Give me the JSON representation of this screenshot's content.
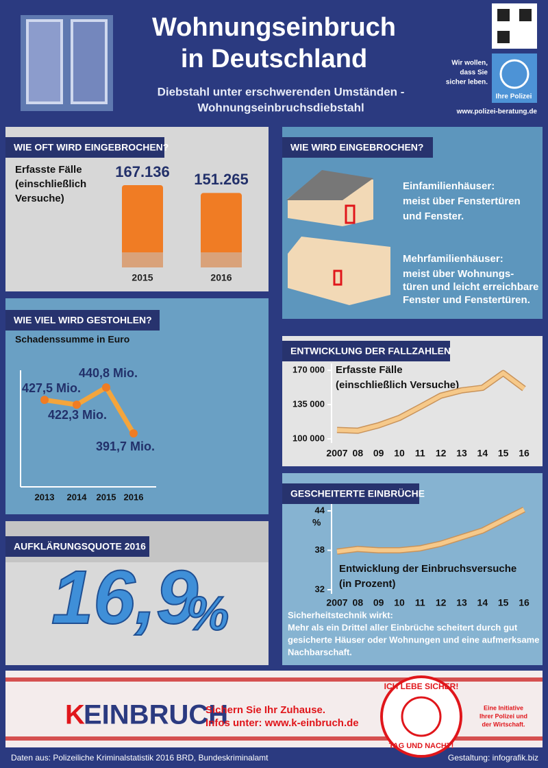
{
  "header": {
    "title_lines": [
      "Wohnungseinbruch",
      "in Deutschland"
    ],
    "subtitle_lines": [
      "Diebstahl unter erschwerenden Umständen -",
      "Wohnungseinbruchsdiebstahl"
    ],
    "badge_lines": [
      "Wir wollen,",
      "dass Sie",
      "sicher leben."
    ],
    "badge_label": "Ihre Polizei",
    "url": "www.polizei-beratung.de"
  },
  "methods": {
    "title": "WIE WIRD EINGEBROCHEN?",
    "items": [
      {
        "label": "Einfamilienhäuser:",
        "lines": [
          "meist über Fenstertüren",
          "und Fenster."
        ]
      },
      {
        "label": "Mehrfamilienhäuser:",
        "lines": [
          "meist über Wohnungs-",
          "türen und leicht erreichbare",
          "Fenster und Fenstertüren."
        ]
      }
    ]
  },
  "chart_data": [
    {
      "type": "bar",
      "title": "WIE OFT WIRD EINGEBROCHEN?",
      "subtitle_lines": [
        "Erfasste Fälle",
        "(einschließlich",
        "Versuche)"
      ],
      "categories": [
        "2015",
        "2016"
      ],
      "values": [
        167136,
        151265
      ],
      "value_labels": [
        "167.136",
        "151.265"
      ],
      "color": "#f07c24"
    },
    {
      "type": "line",
      "title": "WIE VIEL WIRD GESTOHLEN?",
      "subtitle": "Schadenssumme in Euro",
      "categories": [
        "2013",
        "2014",
        "2015",
        "2016"
      ],
      "values": [
        427.5,
        422.3,
        440.8,
        391.7
      ],
      "value_labels": [
        "427,5 Mio.",
        "422,3 Mio.",
        "440,8 Mio.",
        "391,7 Mio."
      ],
      "color": "#f4a53c"
    },
    {
      "type": "line",
      "title": "ENTWICKLUNG DER FALLZAHLEN",
      "subtitle_lines": [
        "Erfasste Fälle",
        "(einschließlich Versuche)"
      ],
      "categories": [
        "2007",
        "08",
        "09",
        "10",
        "11",
        "12",
        "13",
        "14",
        "15",
        "16"
      ],
      "values": [
        109128,
        108284,
        113800,
        121347,
        132595,
        144117,
        149500,
        152123,
        167136,
        151265
      ],
      "ylim": [
        100000,
        170000
      ],
      "yticks": [
        {
          "value": 100000,
          "label": "100 000"
        },
        {
          "value": 135000,
          "label": "135 000"
        },
        {
          "value": 170000,
          "label": "170 000"
        }
      ],
      "color": "#f6c98a"
    },
    {
      "type": "line",
      "title": "GESCHEITERTE EINBRÜCHE",
      "subtitle_lines": [
        "Entwicklung der Einbruchsversuche",
        "(in Prozent)"
      ],
      "categories": [
        "2007",
        "08",
        "09",
        "10",
        "11",
        "12",
        "13",
        "14",
        "15",
        "16"
      ],
      "values": [
        37.8,
        38.2,
        38.0,
        38.0,
        38.3,
        39.0,
        40.0,
        41.0,
        42.6,
        44.2
      ],
      "ylim": [
        32,
        44
      ],
      "yticks": [
        32,
        38,
        44
      ],
      "yunit": "%",
      "color": "#f6c98a",
      "note_title": "Sicherheitstechnik wirkt:",
      "note_lines": [
        "Mehr als ein Drittel aller Einbrüche scheitert durch gut",
        "gesicherte Häuser oder Wohnungen und eine aufmerksame",
        "Nachbarschaft."
      ]
    }
  ],
  "clearance": {
    "title": "AUFKLÄRUNGSQUOTE 2016",
    "value": "16,9",
    "unit": "%"
  },
  "footer": {
    "logo_k": "K",
    "logo_rest": "EINBRUCH",
    "tagline_lines": [
      "Sichern Sie Ihr Zuhause.",
      "Infos unter: www.k-einbruch.de"
    ],
    "stamp_top": "ICH LEBE SICHER!",
    "stamp_bottom": "TAG UND NACHT!",
    "initiative_lines": [
      "Eine Initiative",
      "Ihrer Polizei und",
      "der Wirtschaft."
    ],
    "source": "Daten aus: Polizeiliche Kriminalstatistik 2016 BRD, Bundeskriminalamt",
    "design": "Gestaltung: infografik.biz"
  }
}
